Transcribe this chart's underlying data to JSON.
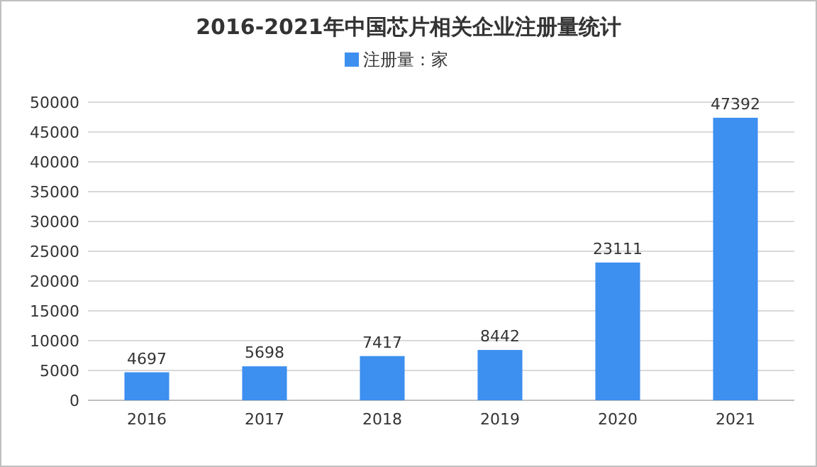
{
  "chart_data": {
    "type": "bar",
    "title": "2016-2021年中国芯片相关企业注册量统计",
    "categories": [
      "2016",
      "2017",
      "2018",
      "2019",
      "2020",
      "2021"
    ],
    "series": [
      {
        "name": "注册量：家",
        "color": "#3d8ff0",
        "values": [
          4697,
          5698,
          7417,
          8442,
          23111,
          47392
        ]
      }
    ],
    "ylim": [
      0,
      50000
    ],
    "yticks": [
      0,
      5000,
      10000,
      15000,
      20000,
      25000,
      30000,
      35000,
      40000,
      45000,
      50000
    ],
    "grid": "y",
    "legend": "top",
    "data_labels": true
  }
}
